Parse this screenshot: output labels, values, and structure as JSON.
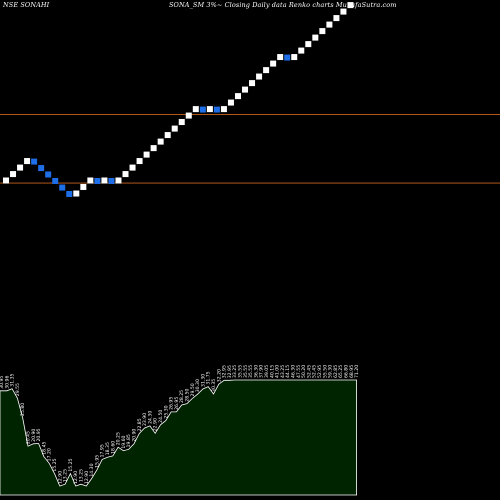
{
  "header": {
    "exchange_symbol": "NSE SONAHI",
    "description": "SONA_SM 3%~  Closing Daily data  Renko  charts MunafaSutra.com"
  },
  "colors": {
    "background": "#000000",
    "up_brick": "#ffffff",
    "down_brick": "#1e6ee8",
    "reference_line": "#c8641e",
    "volume_fill": "#002400",
    "volume_stroke": "#ffffff",
    "label_text": "#ffffff"
  },
  "chart_data": {
    "type": "renko",
    "reference_lines": [
      22.93,
      16.78
    ],
    "bricks": [
      {
        "close": 17.21,
        "dir": "up"
      },
      {
        "close": 17.72,
        "dir": "up"
      },
      {
        "close": 18.25,
        "dir": "up"
      },
      {
        "close": 18.8,
        "dir": "up"
      },
      {
        "close": 18.25,
        "dir": "down"
      },
      {
        "close": 17.72,
        "dir": "down"
      },
      {
        "close": 17.21,
        "dir": "down"
      },
      {
        "close": 16.71,
        "dir": "down"
      },
      {
        "close": 16.22,
        "dir": "down"
      },
      {
        "close": 15.75,
        "dir": "down"
      },
      {
        "close": 16.22,
        "dir": "up"
      },
      {
        "close": 16.71,
        "dir": "up"
      },
      {
        "close": 17.21,
        "dir": "up"
      },
      {
        "close": 16.71,
        "dir": "down"
      },
      {
        "close": 17.21,
        "dir": "up"
      },
      {
        "close": 16.71,
        "dir": "down"
      },
      {
        "close": 17.21,
        "dir": "up"
      },
      {
        "close": 17.72,
        "dir": "up"
      },
      {
        "close": 18.25,
        "dir": "up"
      },
      {
        "close": 18.8,
        "dir": "up"
      },
      {
        "close": 19.36,
        "dir": "up"
      },
      {
        "close": 19.94,
        "dir": "up"
      },
      {
        "close": 20.54,
        "dir": "up"
      },
      {
        "close": 21.16,
        "dir": "up"
      },
      {
        "close": 21.79,
        "dir": "up"
      },
      {
        "close": 22.45,
        "dir": "up"
      },
      {
        "close": 23.12,
        "dir": "up"
      },
      {
        "close": 23.81,
        "dir": "up"
      },
      {
        "close": 23.12,
        "dir": "down"
      },
      {
        "close": 23.81,
        "dir": "up"
      },
      {
        "close": 23.12,
        "dir": "down"
      },
      {
        "close": 23.81,
        "dir": "up"
      },
      {
        "close": 24.53,
        "dir": "up"
      },
      {
        "close": 25.26,
        "dir": "up"
      },
      {
        "close": 26.02,
        "dir": "up"
      },
      {
        "close": 26.8,
        "dir": "up"
      },
      {
        "close": 27.61,
        "dir": "up"
      },
      {
        "close": 28.43,
        "dir": "up"
      },
      {
        "close": 29.29,
        "dir": "up"
      },
      {
        "close": 30.17,
        "dir": "up"
      },
      {
        "close": 29.29,
        "dir": "down"
      },
      {
        "close": 30.17,
        "dir": "up"
      },
      {
        "close": 31.07,
        "dir": "up"
      },
      {
        "close": 32.0,
        "dir": "up"
      },
      {
        "close": 32.96,
        "dir": "up"
      },
      {
        "close": 33.95,
        "dir": "up"
      },
      {
        "close": 34.97,
        "dir": "up"
      },
      {
        "close": 36.02,
        "dir": "up"
      },
      {
        "close": 37.1,
        "dir": "up"
      },
      {
        "close": 38.21,
        "dir": "up"
      }
    ],
    "price_labels": [
      "30.95",
      "30.96",
      "31.35",
      "29.55",
      "25.80",
      "20.45",
      "20.90",
      "20.95",
      "18.45",
      "17.20",
      "15.25",
      "12.90",
      "13.25",
      "15.25",
      "12.90",
      "13.25",
      "12.90",
      "14.30",
      "15.95",
      "17.95",
      "18.35",
      "18.60",
      "20.25",
      "19.60",
      "19.85",
      "20.90",
      "22.85",
      "23.90",
      "24.30",
      "22.90",
      "24.50",
      "25.30",
      "26.95",
      "26.95",
      "28.25",
      "28.50",
      "29.50",
      "30.30",
      "31.30",
      "31.75",
      "30.35",
      "32.20",
      "32.95",
      "32.95",
      "33.25",
      "35.55",
      "35.55",
      "35.55",
      "36.30",
      "37.90",
      "39.05",
      "40.15",
      "41.00",
      "43.25",
      "44.15",
      "46.30",
      "47.55",
      "50.20",
      "52.45",
      "52.45",
      "52.95",
      "55.50",
      "59.30",
      "62.85",
      "65.25",
      "66.80",
      "68.95",
      "71.20"
    ]
  }
}
